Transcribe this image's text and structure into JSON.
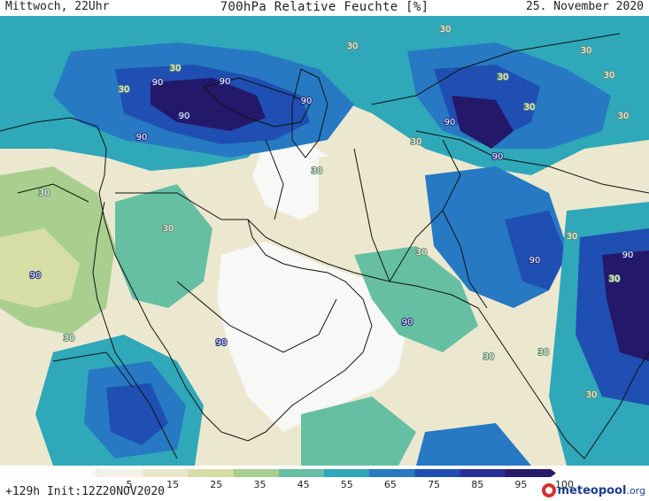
{
  "header": {
    "left": "Mittwoch, 22Uhr",
    "title": "700hPa Relative Feuchte [%]",
    "right": "25. November 2020"
  },
  "footer": {
    "run_info": "+129h  Init:12Z20NOV2020",
    "logo_name": "meteopool",
    "logo_tld": ".org"
  },
  "colorbar": {
    "ticks": [
      "5",
      "15",
      "25",
      "35",
      "45",
      "55",
      "65",
      "75",
      "85",
      "95",
      "100"
    ],
    "colors": [
      "#ffffff",
      "#f3f1e6",
      "#e9e6c9",
      "#d7dea5",
      "#a8cf8e",
      "#66bfa3",
      "#2fa8b9",
      "#2679c2",
      "#1f4fb2",
      "#282f95",
      "#2a1a6a"
    ]
  },
  "map": {
    "contour_labels": [
      "30",
      "90",
      "30",
      "90",
      "90",
      "90",
      "30",
      "30",
      "30",
      "90",
      "90",
      "30",
      "30",
      "30",
      "30",
      "30",
      "90",
      "90",
      "30",
      "30",
      "30",
      "90",
      "90",
      "90",
      "30",
      "30",
      "30",
      "30",
      "90",
      "30",
      "30",
      "30"
    ],
    "colors": {
      "very_wet": "#24186a",
      "wet": "#1f4fb2",
      "moist": "#2679c2",
      "mid": "#2fa8b9",
      "semi": "#66bfa3",
      "light": "#a8cf8e",
      "pale": "#d7dea5",
      "dry": "#ece8cf",
      "very_dry": "#f8f8f6",
      "border": "#111111"
    }
  }
}
